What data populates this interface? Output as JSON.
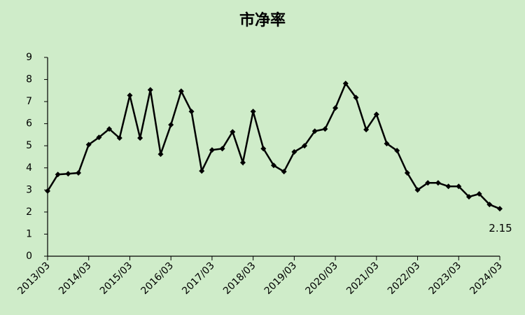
{
  "chart_data": {
    "type": "line",
    "title": "市净率",
    "categories": [
      "2013/03",
      null,
      null,
      null,
      "2014/03",
      null,
      null,
      null,
      "2015/03",
      null,
      null,
      null,
      "2016/03",
      null,
      null,
      null,
      "2017/03",
      null,
      null,
      null,
      "2018/03",
      null,
      null,
      null,
      "2019/03",
      null,
      null,
      null,
      "2020/03",
      null,
      null,
      null,
      "2021/03",
      null,
      null,
      null,
      "2022/03",
      null,
      null,
      null,
      "2023/03",
      null,
      null,
      null,
      "2024/03"
    ],
    "values": [
      2.95,
      3.7,
      3.73,
      3.77,
      5.05,
      5.38,
      5.76,
      5.35,
      7.28,
      5.35,
      7.53,
      4.62,
      5.95,
      7.47,
      6.55,
      3.86,
      4.81,
      4.87,
      5.63,
      4.24,
      6.55,
      4.87,
      4.11,
      3.83,
      4.72,
      5.0,
      5.66,
      5.76,
      6.71,
      7.82,
      7.18,
      5.73,
      6.42,
      5.1,
      4.78,
      3.77,
      3.0,
      3.32,
      3.32,
      3.16,
      3.16,
      2.69,
      2.82,
      2.34,
      2.15
    ],
    "color": "#000000",
    "ylim": [
      0,
      9
    ],
    "yticks": [
      0,
      1,
      2,
      3,
      4,
      5,
      6,
      7,
      8,
      9
    ],
    "grid": false
  }
}
